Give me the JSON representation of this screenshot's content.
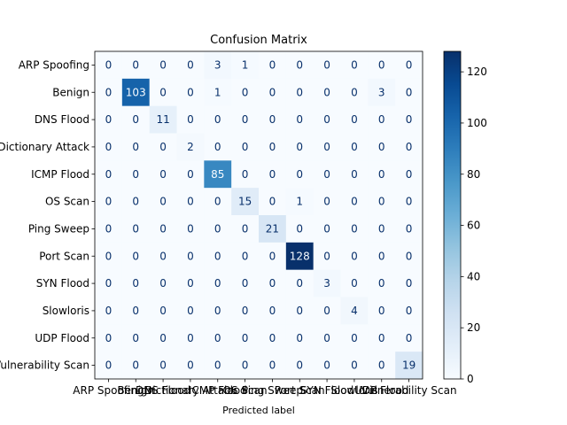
{
  "chart_data": {
    "type": "heatmap",
    "title": "Confusion Matrix",
    "xlabel": "Predicted label",
    "ylabel": "",
    "labels": [
      "ARP Spoofing",
      "Benign",
      "DNS Flood",
      "Dictionary Attack",
      "ICMP Flood",
      "OS Scan",
      "Ping Sweep",
      "Port Scan",
      "SYN Flood",
      "Slowloris",
      "UDP Flood",
      "Vulnerability Scan"
    ],
    "matrix": [
      [
        0,
        0,
        0,
        0,
        3,
        1,
        0,
        0,
        0,
        0,
        0,
        0
      ],
      [
        0,
        103,
        0,
        0,
        1,
        0,
        0,
        0,
        0,
        0,
        3,
        0
      ],
      [
        0,
        0,
        11,
        0,
        0,
        0,
        0,
        0,
        0,
        0,
        0,
        0
      ],
      [
        0,
        0,
        0,
        2,
        0,
        0,
        0,
        0,
        0,
        0,
        0,
        0
      ],
      [
        0,
        0,
        0,
        0,
        85,
        0,
        0,
        0,
        0,
        0,
        0,
        0
      ],
      [
        0,
        0,
        0,
        0,
        0,
        15,
        0,
        1,
        0,
        0,
        0,
        0
      ],
      [
        0,
        0,
        0,
        0,
        0,
        0,
        21,
        0,
        0,
        0,
        0,
        0
      ],
      [
        0,
        0,
        0,
        0,
        0,
        0,
        0,
        128,
        0,
        0,
        0,
        0
      ],
      [
        0,
        0,
        0,
        0,
        0,
        0,
        0,
        0,
        3,
        0,
        0,
        0
      ],
      [
        0,
        0,
        0,
        0,
        0,
        0,
        0,
        0,
        0,
        4,
        0,
        0
      ],
      [
        0,
        0,
        0,
        0,
        0,
        0,
        0,
        0,
        0,
        0,
        0,
        0
      ],
      [
        0,
        0,
        0,
        0,
        0,
        0,
        0,
        0,
        0,
        0,
        0,
        19
      ]
    ],
    "colormap": "Blues",
    "color_range": [
      0,
      128
    ],
    "colorbar_ticks": [
      0,
      20,
      40,
      60,
      80,
      100,
      120
    ],
    "colors": {
      "low": "#f7fbff",
      "high": "#08306b",
      "text_dark": "#08306b",
      "text_light": "#f7fbff"
    }
  }
}
